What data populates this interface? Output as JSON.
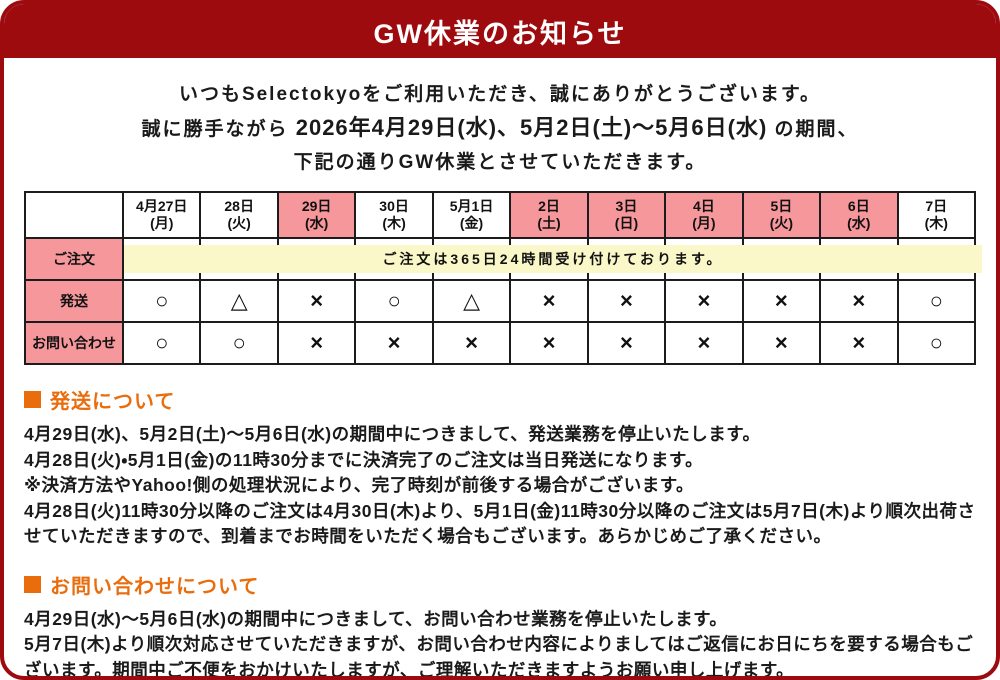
{
  "header": {
    "title": "GW休業のお知らせ"
  },
  "intro": {
    "line1": "いつもSelectokyoをご利用いただき、誠にありがとうございます。",
    "line2_prefix": "誠に勝手ながら ",
    "line2_bold": "2026年4月29日(水)、5月2日(土)～5月6日(水)",
    "line2_suffix": " の期間、",
    "line3": "下記の通りGW休業とさせていただきます。"
  },
  "colors": {
    "accent_red": "#9e0b0e",
    "holiday_pink": "#f5979b",
    "band_yellow": "#faf8c8",
    "heading_orange": "#e96d0d"
  },
  "schedule_table": {
    "columns": [
      {
        "label": "4月27日",
        "day": "(月)",
        "closed": false
      },
      {
        "label": "28日",
        "day": "(火)",
        "closed": false
      },
      {
        "label": "29日",
        "day": "(水)",
        "closed": true
      },
      {
        "label": "30日",
        "day": "(木)",
        "closed": false
      },
      {
        "label": "5月1日",
        "day": "(金)",
        "closed": false
      },
      {
        "label": "2日",
        "day": "(土)",
        "closed": true
      },
      {
        "label": "3日",
        "day": "(日)",
        "closed": true
      },
      {
        "label": "4日",
        "day": "(月)",
        "closed": true
      },
      {
        "label": "5日",
        "day": "(火)",
        "closed": true
      },
      {
        "label": "6日",
        "day": "(水)",
        "closed": true
      },
      {
        "label": "7日",
        "day": "(木)",
        "closed": false
      }
    ],
    "rows": [
      {
        "label": "ご注文",
        "type": "banner",
        "banner_text": "ご注文は365日24時間受け付けております。"
      },
      {
        "label": "発送",
        "type": "symbols",
        "values": [
          "○",
          "△",
          "×",
          "○",
          "△",
          "×",
          "×",
          "×",
          "×",
          "×",
          "○"
        ]
      },
      {
        "label": "お問い合わせ",
        "type": "symbols",
        "values": [
          "○",
          "○",
          "×",
          "×",
          "×",
          "×",
          "×",
          "×",
          "×",
          "×",
          "○"
        ]
      }
    ]
  },
  "sections": [
    {
      "heading": "発送について",
      "paragraphs": [
        "4月29日(水)、5月2日(土)～5月6日(水)の期間中につきまして、発送業務を停止いたします。",
        "4月28日(火)・5月1日(金)の11時30分までに決済完了のご注文は当日発送になります。",
        "※決済方法やYahoo!側の処理状況により、完了時刻が前後する場合がございます。",
        "4月28日(火)11時30分以降のご注文は4月30日(木)より、5月1日(金)11時30分以降のご注文は5月7日(木)より順次出荷させていただきますので、到着までお時間をいただく場合もございます。あらかじめご了承ください。"
      ]
    },
    {
      "heading": "お問い合わせについて",
      "paragraphs": [
        "4月29日(水)～5月6日(水)の期間中につきまして、お問い合わせ業務を停止いたします。",
        "5月7日(木)より順次対応させていただきますが、お問い合わせ内容によりましてはご返信にお日にちを要する場合もございます。期間中ご不便をおかけいたしますが、ご理解いただきますようお願い申し上げます。"
      ]
    }
  ]
}
